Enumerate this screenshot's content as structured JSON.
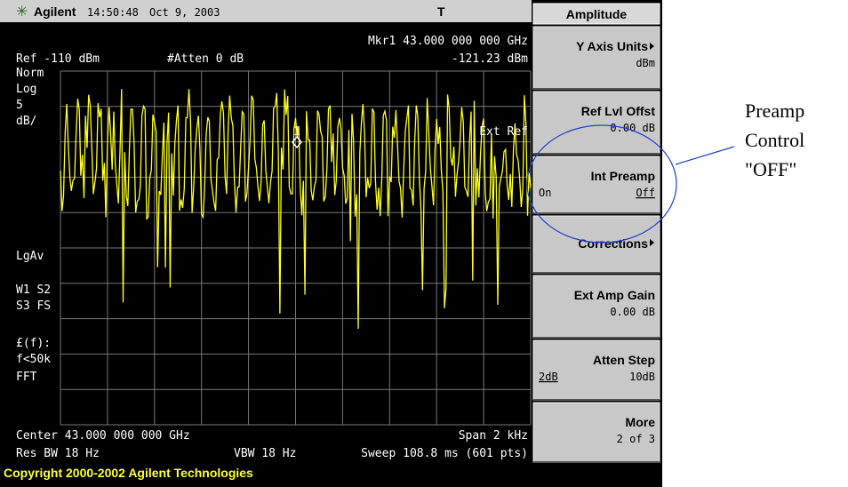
{
  "header": {
    "brand": "Agilent",
    "time": "14:50:48",
    "date": "Oct 9, 2003",
    "indicator": "T"
  },
  "display": {
    "ref": "Ref -110 dBm",
    "atten": "#Atten 0 dB",
    "marker": "Mkr1 43.000 000 000 GHz",
    "marker_value": "-121.23 dBm",
    "left_labels": [
      "Norm",
      "Log",
      "5",
      "dB/",
      "LgAv",
      "W1  S2",
      "S3  FS",
      "£(f):",
      "f<50k",
      "FFT"
    ],
    "ext_ref": "Ext Ref",
    "marker_label": "1",
    "center": "Center 43.000 000 000 GHz",
    "span": "Span 2 kHz",
    "res_bw": "Res BW 18 Hz",
    "vbw": "VBW 18 Hz",
    "sweep": "Sweep 108.8 ms (601 pts)"
  },
  "softkeys": {
    "title": "Amplitude",
    "keys": [
      {
        "label": "Y Axis Units",
        "value": "dBm"
      },
      {
        "label": "Ref Lvl Offst",
        "value": "0.00 dB"
      },
      {
        "label": "Int Preamp",
        "option_a": "On",
        "option_b": "Off"
      },
      {
        "label": "Corrections"
      },
      {
        "label": "Ext Amp Gain",
        "value": "0.00 dB"
      },
      {
        "label": "Atten Step",
        "option_a": "2dB",
        "option_b": "10dB"
      },
      {
        "label": "More",
        "value": "2 of 3"
      }
    ]
  },
  "footer": {
    "copyright": "Copyright 2000-2002 Agilent Technologies"
  },
  "annotation": {
    "lines": [
      "Preamp",
      "Control",
      "\"OFF\""
    ]
  }
}
